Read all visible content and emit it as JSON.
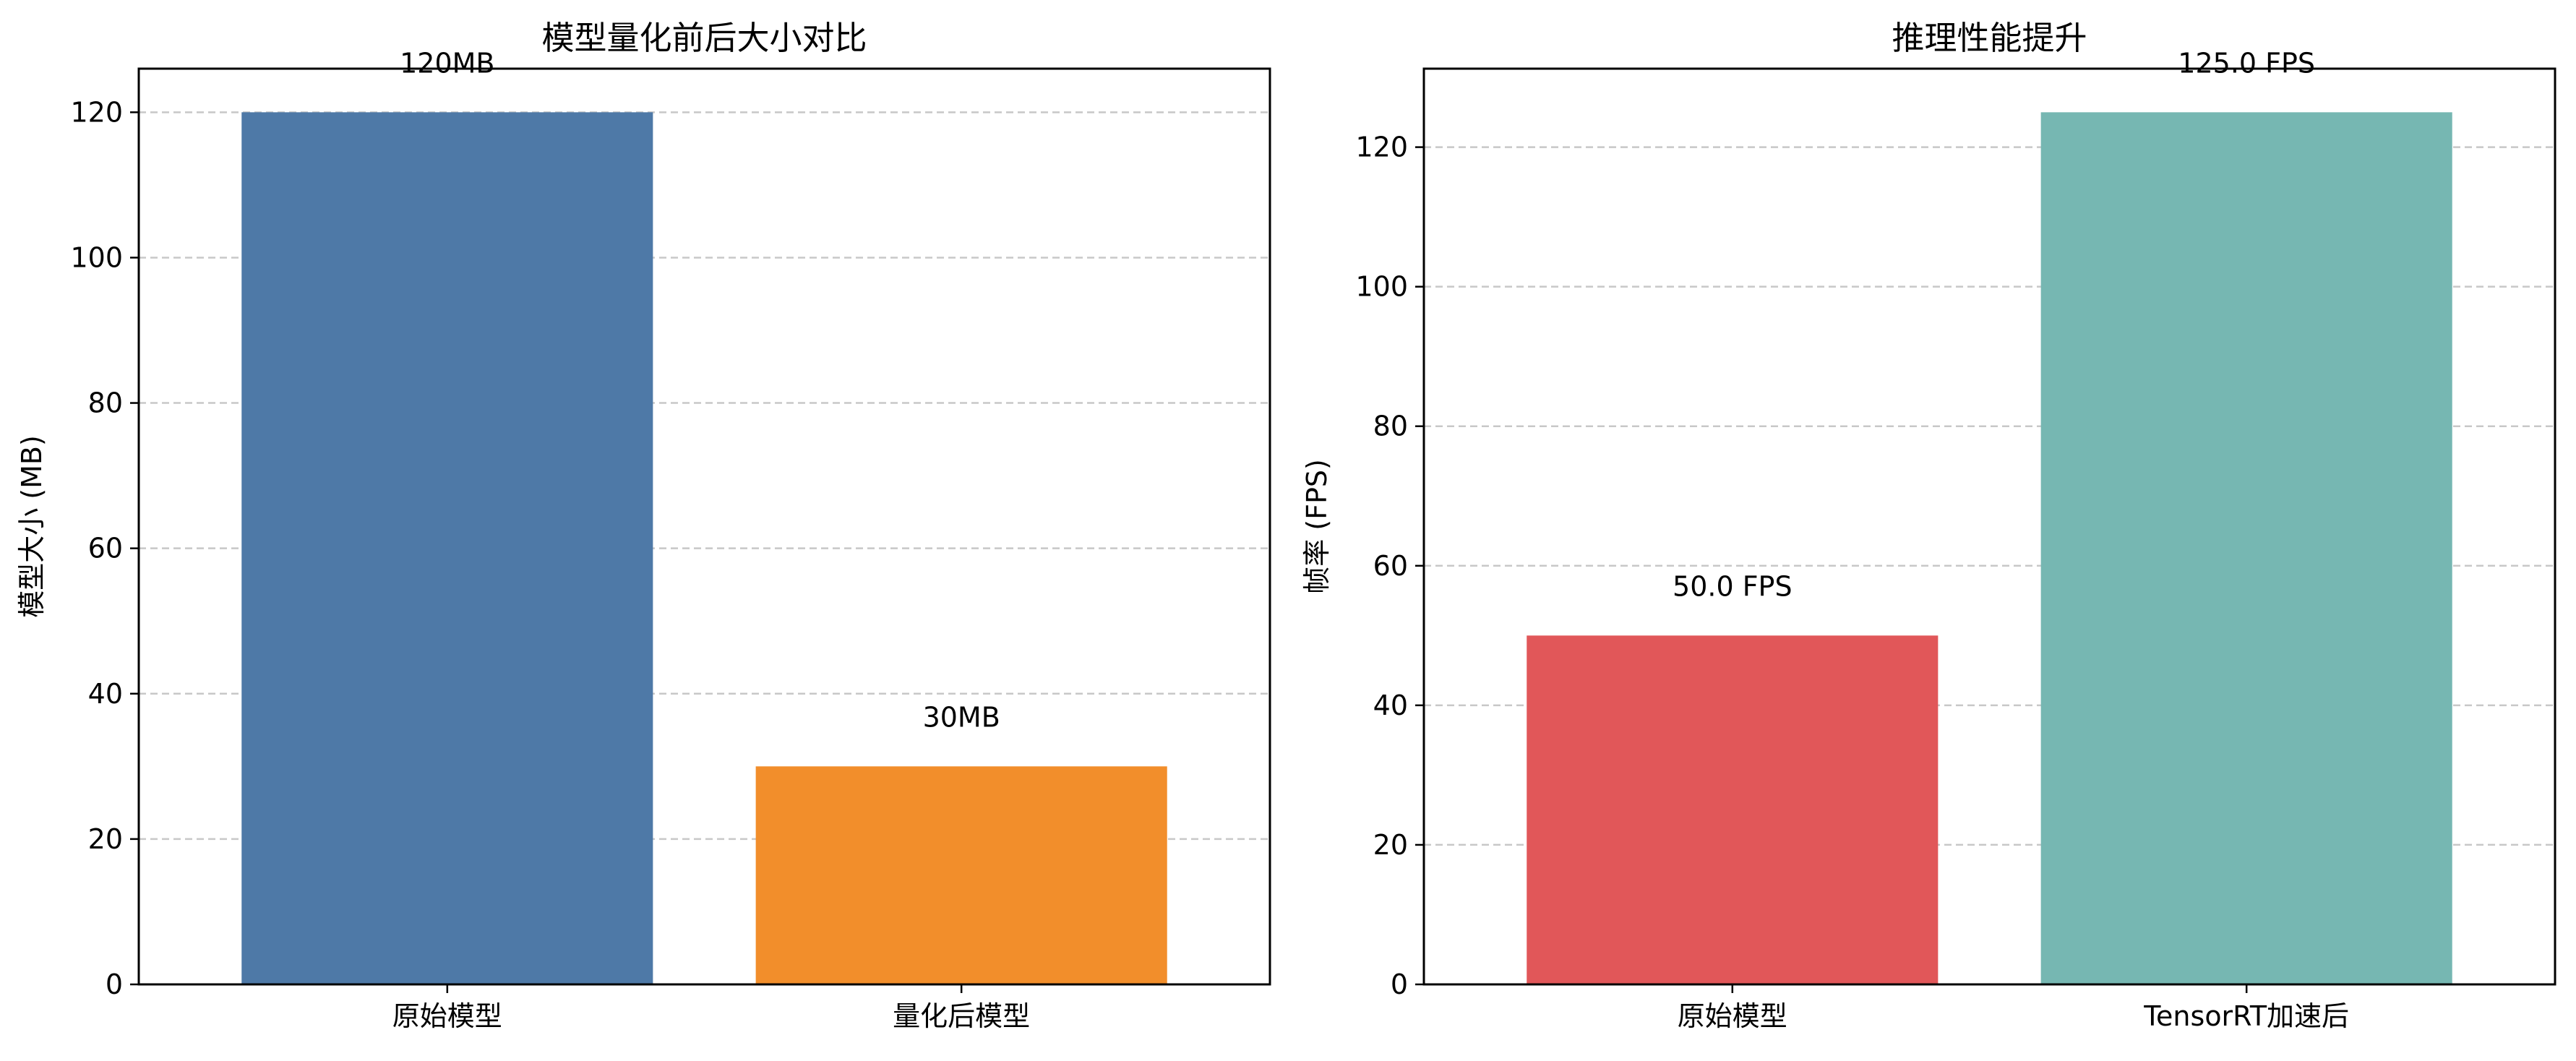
{
  "chart_data": [
    {
      "type": "bar",
      "title": "模型量化前后大小对比",
      "xlabel": "",
      "ylabel": "模型大小 (MB)",
      "categories": [
        "原始模型",
        "量化后模型"
      ],
      "values": [
        120,
        30
      ],
      "value_labels": [
        "120MB",
        "30MB"
      ],
      "colors": [
        "#4e79a7",
        "#f28e2b"
      ],
      "ylim": [
        0,
        126
      ],
      "yticks": [
        0,
        20,
        40,
        60,
        80,
        100,
        120
      ],
      "grid": "y-dashed",
      "legend": "none"
    },
    {
      "type": "bar",
      "title": "推理性能提升",
      "xlabel": "",
      "ylabel": "帧率 (FPS)",
      "categories": [
        "原始模型",
        "TensorRT加速后"
      ],
      "values": [
        50.0,
        125.0
      ],
      "value_labels": [
        "50.0 FPS",
        "125.0 FPS"
      ],
      "colors": [
        "#e15759",
        "#76b7b2"
      ],
      "ylim": [
        0,
        131.25
      ],
      "yticks": [
        0,
        20,
        40,
        60,
        80,
        100,
        120
      ],
      "grid": "y-dashed",
      "legend": "none"
    }
  ]
}
